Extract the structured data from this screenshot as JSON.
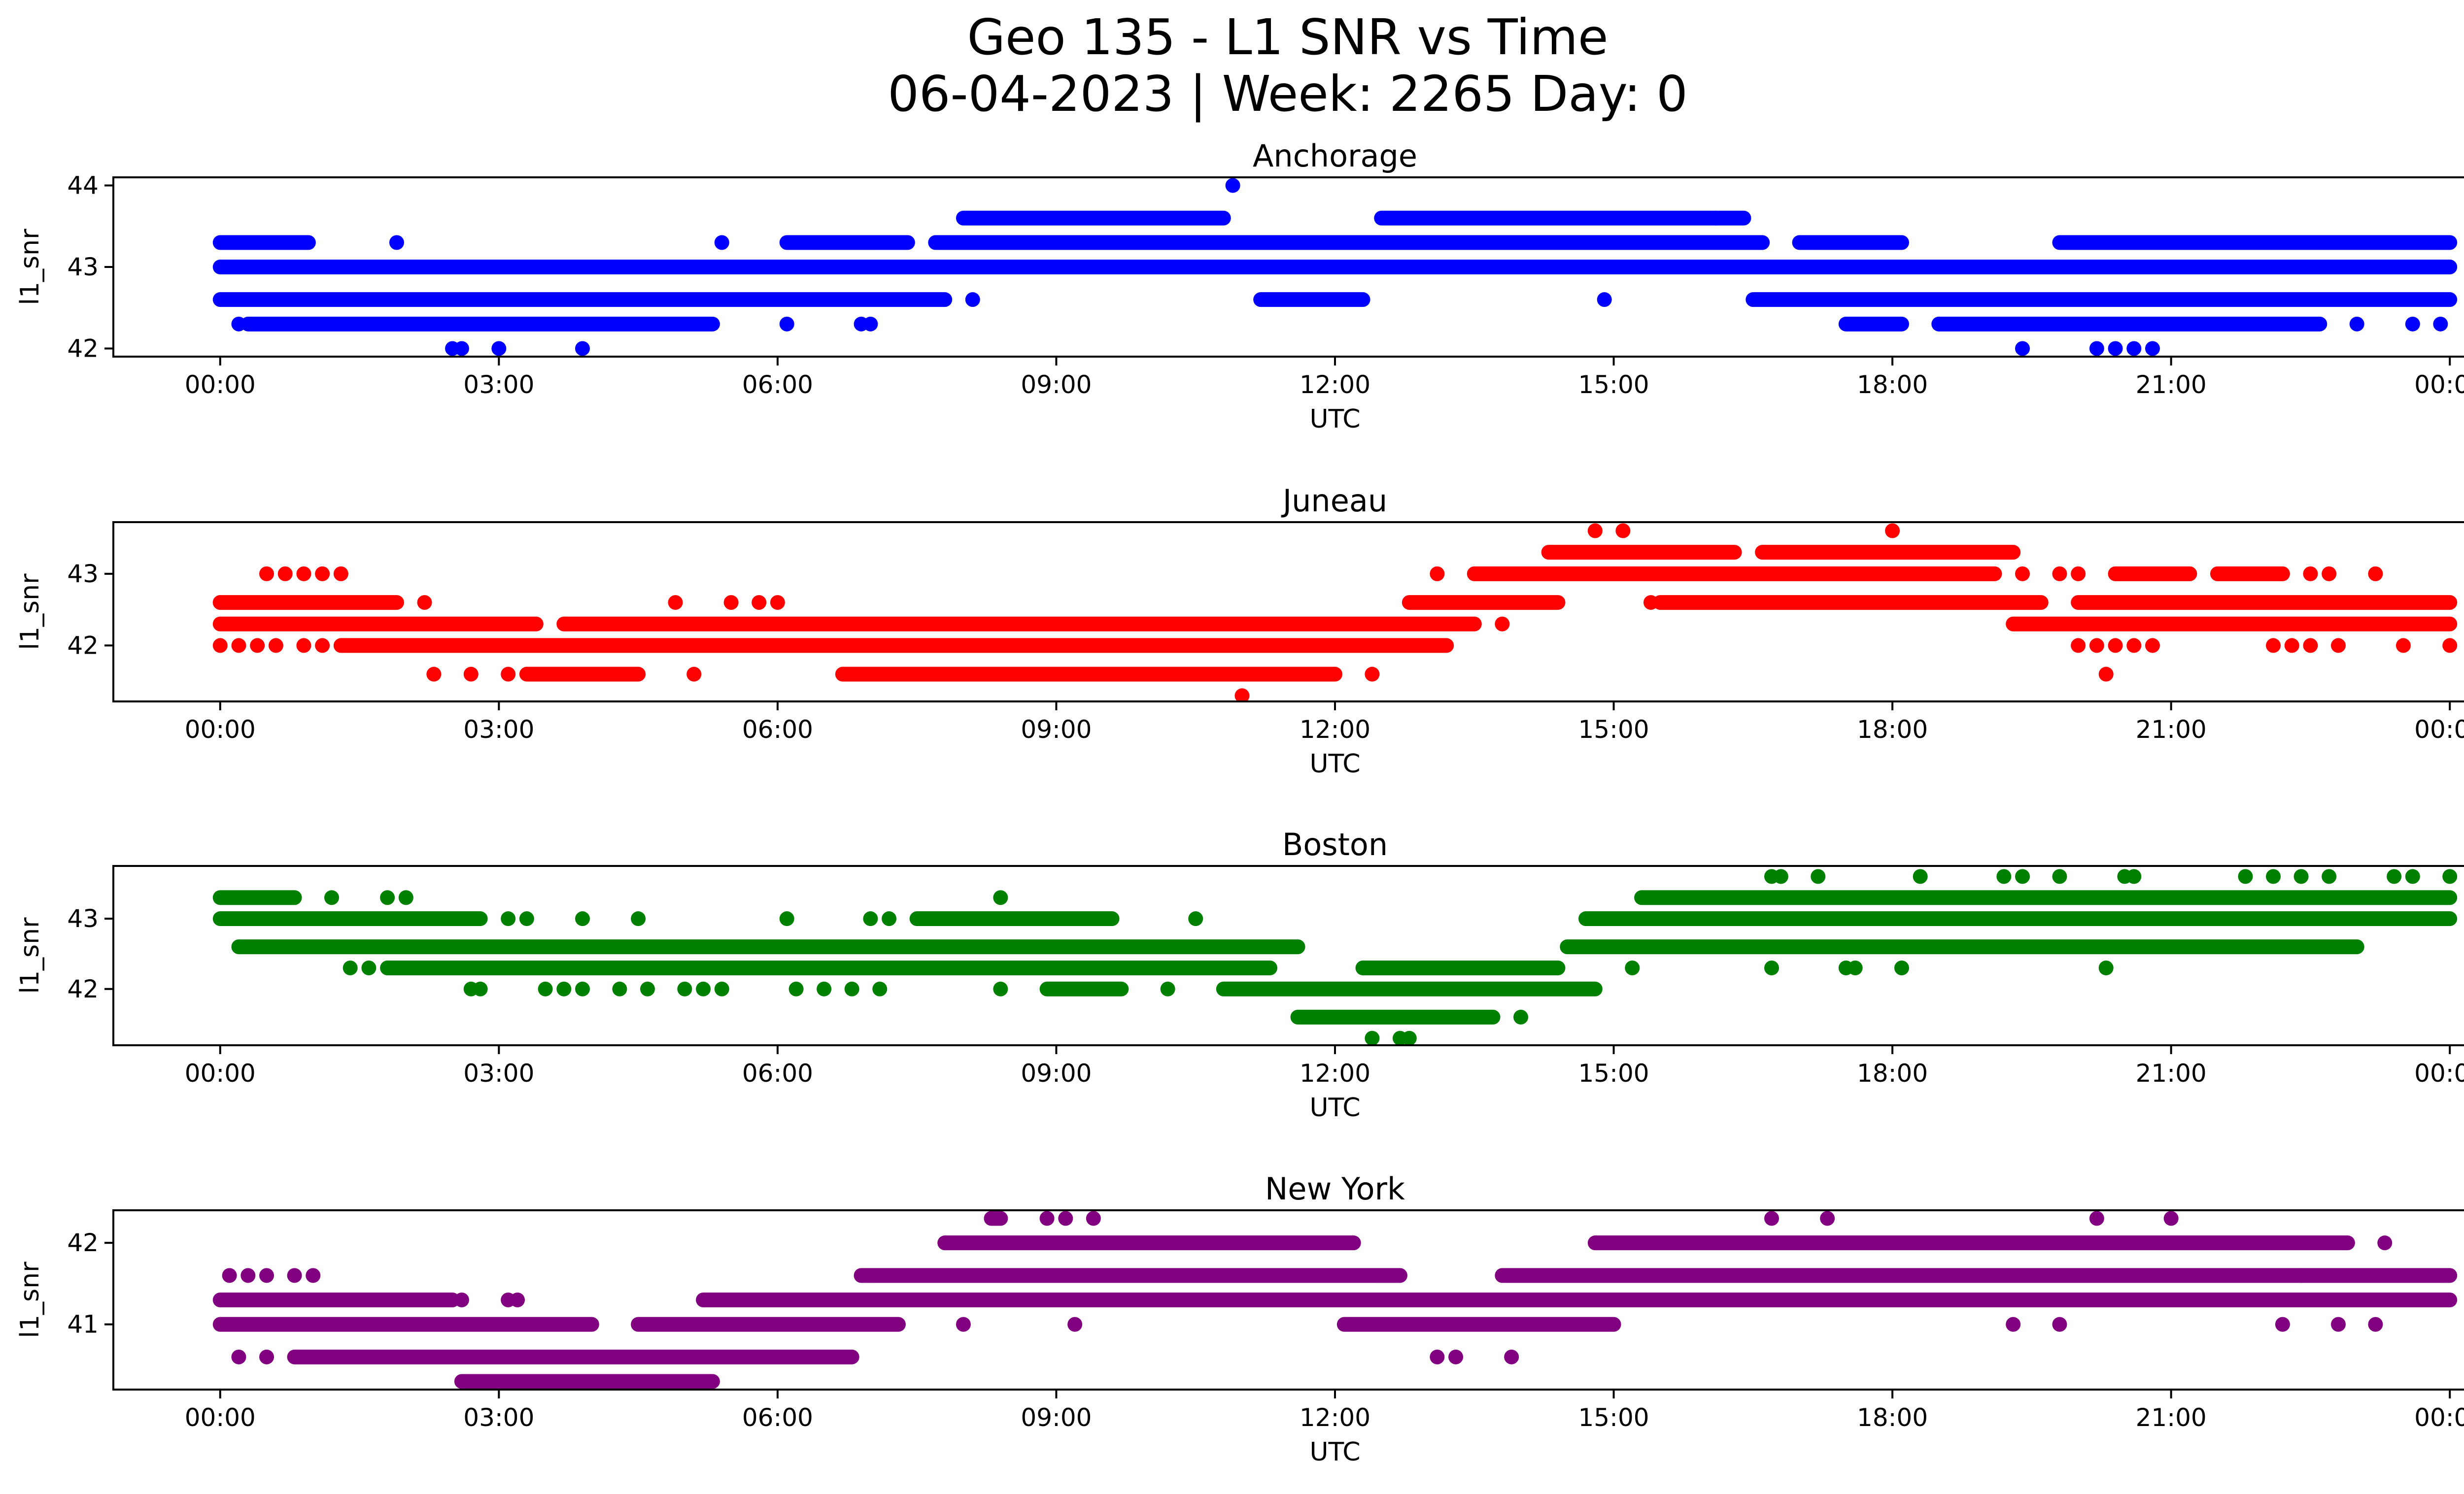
{
  "figure": {
    "title_line1": "Geo 135 - L1 SNR vs Time",
    "title_line2": "06-04-2023 | Week: 2265 Day: 0"
  },
  "chart_data": [
    {
      "type": "scatter",
      "title": "Anchorage",
      "xlabel": "UTC",
      "ylabel": "l1_snr",
      "color": "#0000ff",
      "x_unit": "hours UTC",
      "xlim": [
        -1.15,
        25.15
      ],
      "xticks": [
        0,
        3,
        6,
        9,
        12,
        15,
        18,
        21,
        24
      ],
      "xtick_labels": [
        "00:00",
        "03:00",
        "06:00",
        "09:00",
        "12:00",
        "15:00",
        "18:00",
        "21:00",
        "00:00"
      ],
      "ylim": [
        41.9,
        44.1
      ],
      "yticks": [
        42,
        43,
        44
      ],
      "ytick_labels": [
        "42",
        "43",
        "44"
      ],
      "bands": [
        {
          "y": 43.0,
          "x": [
            [
              0,
              24
            ]
          ]
        },
        {
          "y": 42.6,
          "x": [
            [
              0,
              7.8
            ],
            [
              11.2,
              12.3
            ],
            [
              16.5,
              24
            ]
          ]
        },
        {
          "y": 42.3,
          "x": [
            [
              0.3,
              5.3
            ],
            [
              17.5,
              18.1
            ],
            [
              18.5,
              22.6
            ]
          ]
        },
        {
          "y": 43.3,
          "x": [
            [
              0,
              0.95
            ],
            [
              6.1,
              7.4
            ],
            [
              7.7,
              16.6
            ],
            [
              17.0,
              18.1
            ],
            [
              19.8,
              24
            ]
          ]
        },
        {
          "y": 43.6,
          "x": [
            [
              8.0,
              10.8
            ],
            [
              12.5,
              16.4
            ]
          ]
        }
      ],
      "points": [
        {
          "x": 0.2,
          "y": 42.3
        },
        {
          "x": 1.9,
          "y": 43.3
        },
        {
          "x": 5.4,
          "y": 43.3
        },
        {
          "x": 6.1,
          "y": 42.3
        },
        {
          "x": 6.9,
          "y": 42.3
        },
        {
          "x": 7.0,
          "y": 42.3
        },
        {
          "x": 8.1,
          "y": 42.6
        },
        {
          "x": 2.5,
          "y": 42.0
        },
        {
          "x": 2.6,
          "y": 42.0
        },
        {
          "x": 3.0,
          "y": 42.0
        },
        {
          "x": 3.9,
          "y": 42.0
        },
        {
          "x": 10.9,
          "y": 44.0
        },
        {
          "x": 14.9,
          "y": 42.6
        },
        {
          "x": 18.5,
          "y": 42.3
        },
        {
          "x": 19.4,
          "y": 42.0
        },
        {
          "x": 20.2,
          "y": 42.0
        },
        {
          "x": 20.4,
          "y": 42.0
        },
        {
          "x": 20.6,
          "y": 42.0
        },
        {
          "x": 20.8,
          "y": 42.0
        },
        {
          "x": 23.0,
          "y": 42.3
        },
        {
          "x": 23.6,
          "y": 42.3
        },
        {
          "x": 23.9,
          "y": 42.3
        },
        {
          "x": 16.1,
          "y": 43.6
        }
      ]
    },
    {
      "type": "scatter",
      "title": "Juneau",
      "xlabel": "UTC",
      "ylabel": "l1_snr",
      "color": "#ff0000",
      "x_unit": "hours UTC",
      "xlim": [
        -1.15,
        25.15
      ],
      "xticks": [
        0,
        3,
        6,
        9,
        12,
        15,
        18,
        21,
        24
      ],
      "xtick_labels": [
        "00:00",
        "03:00",
        "06:00",
        "09:00",
        "12:00",
        "15:00",
        "18:00",
        "21:00",
        "00:00"
      ],
      "ylim": [
        41.22,
        43.72
      ],
      "yticks": [
        42,
        43
      ],
      "ytick_labels": [
        "42",
        "43"
      ],
      "bands": [
        {
          "y": 42.0,
          "x": [
            [
              1.3,
              13.2
            ]
          ]
        },
        {
          "y": 42.3,
          "x": [
            [
              0,
              3.4
            ],
            [
              3.7,
              13.5
            ],
            [
              19.3,
              24
            ]
          ]
        },
        {
          "y": 42.6,
          "x": [
            [
              0,
              1.9
            ],
            [
              12.8,
              14.4
            ],
            [
              15.5,
              19.6
            ],
            [
              20.0,
              24
            ]
          ]
        },
        {
          "y": 43.0,
          "x": [
            [
              13.5,
              19.1
            ],
            [
              20.4,
              21.2
            ],
            [
              21.5,
              22.2
            ]
          ]
        },
        {
          "y": 43.3,
          "x": [
            [
              14.3,
              16.3
            ],
            [
              16.6,
              19.3
            ]
          ]
        },
        {
          "y": 41.6,
          "x": [
            [
              3.3,
              4.5
            ],
            [
              6.7,
              12.0
            ]
          ]
        }
      ],
      "points": [
        {
          "x": 0.0,
          "y": 42.0
        },
        {
          "x": 0.2,
          "y": 42.0
        },
        {
          "x": 0.4,
          "y": 42.0
        },
        {
          "x": 0.6,
          "y": 42.0
        },
        {
          "x": 0.9,
          "y": 42.0
        },
        {
          "x": 1.1,
          "y": 42.0
        },
        {
          "x": 0.0,
          "y": 42.6
        },
        {
          "x": 0.5,
          "y": 43.0
        },
        {
          "x": 0.7,
          "y": 43.0
        },
        {
          "x": 0.9,
          "y": 43.0
        },
        {
          "x": 1.1,
          "y": 43.0
        },
        {
          "x": 1.3,
          "y": 43.0
        },
        {
          "x": 2.2,
          "y": 42.6
        },
        {
          "x": 2.3,
          "y": 41.6
        },
        {
          "x": 2.7,
          "y": 41.6
        },
        {
          "x": 3.1,
          "y": 41.6
        },
        {
          "x": 5.1,
          "y": 41.6
        },
        {
          "x": 4.9,
          "y": 42.6
        },
        {
          "x": 5.5,
          "y": 42.6
        },
        {
          "x": 5.8,
          "y": 42.6
        },
        {
          "x": 6.0,
          "y": 42.6
        },
        {
          "x": 11.0,
          "y": 41.3
        },
        {
          "x": 12.4,
          "y": 41.6
        },
        {
          "x": 13.1,
          "y": 43.0
        },
        {
          "x": 13.8,
          "y": 42.3
        },
        {
          "x": 14.8,
          "y": 43.6
        },
        {
          "x": 15.1,
          "y": 43.6
        },
        {
          "x": 15.4,
          "y": 42.6
        },
        {
          "x": 18.0,
          "y": 43.6
        },
        {
          "x": 19.4,
          "y": 43.0
        },
        {
          "x": 19.8,
          "y": 43.0
        },
        {
          "x": 20.0,
          "y": 43.0
        },
        {
          "x": 20.3,
          "y": 41.6
        },
        {
          "x": 20.0,
          "y": 42.0
        },
        {
          "x": 20.2,
          "y": 42.0
        },
        {
          "x": 20.4,
          "y": 42.0
        },
        {
          "x": 20.6,
          "y": 42.0
        },
        {
          "x": 20.8,
          "y": 42.0
        },
        {
          "x": 22.1,
          "y": 42.0
        },
        {
          "x": 22.3,
          "y": 42.0
        },
        {
          "x": 22.5,
          "y": 42.0
        },
        {
          "x": 22.8,
          "y": 42.0
        },
        {
          "x": 23.5,
          "y": 42.0
        },
        {
          "x": 24.0,
          "y": 42.0
        },
        {
          "x": 22.5,
          "y": 43.0
        },
        {
          "x": 22.7,
          "y": 43.0
        },
        {
          "x": 23.2,
          "y": 43.0
        }
      ]
    },
    {
      "type": "scatter",
      "title": "Boston",
      "xlabel": "UTC",
      "ylabel": "l1_snr",
      "color": "#008000",
      "x_unit": "hours UTC",
      "xlim": [
        -1.15,
        25.15
      ],
      "xticks": [
        0,
        3,
        6,
        9,
        12,
        15,
        18,
        21,
        24
      ],
      "xtick_labels": [
        "00:00",
        "03:00",
        "06:00",
        "09:00",
        "12:00",
        "15:00",
        "18:00",
        "21:00",
        "00:00"
      ],
      "ylim": [
        41.2,
        43.75
      ],
      "yticks": [
        42,
        43
      ],
      "ytick_labels": [
        "42",
        "43"
      ],
      "bands": [
        {
          "y": 43.3,
          "x": [
            [
              0,
              0.8
            ],
            [
              15.3,
              24
            ]
          ]
        },
        {
          "y": 43.0,
          "x": [
            [
              0,
              2.8
            ],
            [
              7.5,
              9.6
            ],
            [
              14.7,
              24
            ]
          ]
        },
        {
          "y": 42.6,
          "x": [
            [
              0.2,
              11.6
            ],
            [
              14.5,
              23.0
            ]
          ]
        },
        {
          "y": 42.3,
          "x": [
            [
              1.8,
              11.3
            ],
            [
              12.3,
              14.4
            ]
          ]
        },
        {
          "y": 42.0,
          "x": [
            [
              8.9,
              9.7
            ],
            [
              10.8,
              14.8
            ]
          ]
        },
        {
          "y": 41.6,
          "x": [
            [
              11.6,
              13.7
            ]
          ]
        }
      ],
      "points": [
        {
          "x": 1.2,
          "y": 43.3
        },
        {
          "x": 1.8,
          "y": 43.3
        },
        {
          "x": 2.0,
          "y": 43.3
        },
        {
          "x": 3.1,
          "y": 43.0
        },
        {
          "x": 3.3,
          "y": 43.0
        },
        {
          "x": 3.9,
          "y": 43.0
        },
        {
          "x": 4.5,
          "y": 43.0
        },
        {
          "x": 6.1,
          "y": 43.0
        },
        {
          "x": 7.0,
          "y": 43.0
        },
        {
          "x": 7.2,
          "y": 43.0
        },
        {
          "x": 10.5,
          "y": 43.0
        },
        {
          "x": 8.4,
          "y": 43.3
        },
        {
          "x": 1.4,
          "y": 42.3
        },
        {
          "x": 1.6,
          "y": 42.3
        },
        {
          "x": 2.7,
          "y": 42.0
        },
        {
          "x": 2.8,
          "y": 42.0
        },
        {
          "x": 3.5,
          "y": 42.0
        },
        {
          "x": 3.7,
          "y": 42.0
        },
        {
          "x": 3.9,
          "y": 42.0
        },
        {
          "x": 4.3,
          "y": 42.0
        },
        {
          "x": 4.6,
          "y": 42.0
        },
        {
          "x": 5.0,
          "y": 42.0
        },
        {
          "x": 5.2,
          "y": 42.0
        },
        {
          "x": 5.4,
          "y": 42.0
        },
        {
          "x": 6.2,
          "y": 42.0
        },
        {
          "x": 6.5,
          "y": 42.0
        },
        {
          "x": 6.8,
          "y": 42.0
        },
        {
          "x": 7.1,
          "y": 42.0
        },
        {
          "x": 8.4,
          "y": 42.0
        },
        {
          "x": 10.2,
          "y": 42.0
        },
        {
          "x": 12.4,
          "y": 41.3
        },
        {
          "x": 12.7,
          "y": 41.3
        },
        {
          "x": 12.8,
          "y": 41.3
        },
        {
          "x": 14.0,
          "y": 41.6
        },
        {
          "x": 15.2,
          "y": 42.3
        },
        {
          "x": 16.7,
          "y": 42.3
        },
        {
          "x": 17.5,
          "y": 42.3
        },
        {
          "x": 17.6,
          "y": 42.3
        },
        {
          "x": 18.1,
          "y": 42.3
        },
        {
          "x": 20.3,
          "y": 42.3
        },
        {
          "x": 16.7,
          "y": 43.6
        },
        {
          "x": 16.8,
          "y": 43.6
        },
        {
          "x": 17.2,
          "y": 43.6
        },
        {
          "x": 18.3,
          "y": 43.6
        },
        {
          "x": 19.2,
          "y": 43.6
        },
        {
          "x": 19.4,
          "y": 43.6
        },
        {
          "x": 19.8,
          "y": 43.6
        },
        {
          "x": 20.5,
          "y": 43.6
        },
        {
          "x": 20.6,
          "y": 43.6
        },
        {
          "x": 21.8,
          "y": 43.6
        },
        {
          "x": 22.1,
          "y": 43.6
        },
        {
          "x": 22.4,
          "y": 43.6
        },
        {
          "x": 22.7,
          "y": 43.6
        },
        {
          "x": 23.4,
          "y": 43.6
        },
        {
          "x": 23.6,
          "y": 43.6
        },
        {
          "x": 24.0,
          "y": 43.6
        }
      ]
    },
    {
      "type": "scatter",
      "title": "New York",
      "xlabel": "UTC",
      "ylabel": "l1_snr",
      "color": "#800080",
      "x_unit": "hours UTC",
      "xlim": [
        -1.15,
        25.15
      ],
      "xticks": [
        0,
        3,
        6,
        9,
        12,
        15,
        18,
        21,
        24
      ],
      "xtick_labels": [
        "00:00",
        "03:00",
        "06:00",
        "09:00",
        "12:00",
        "15:00",
        "18:00",
        "21:00",
        "00:00"
      ],
      "ylim": [
        40.2,
        42.4
      ],
      "yticks": [
        41,
        42
      ],
      "ytick_labels": [
        "41",
        "42"
      ],
      "bands": [
        {
          "y": 41.0,
          "x": [
            [
              0,
              4.0
            ],
            [
              4.5,
              7.3
            ],
            [
              12.1,
              15.0
            ]
          ]
        },
        {
          "y": 41.3,
          "x": [
            [
              0,
              2.5
            ],
            [
              5.2,
              24
            ]
          ]
        },
        {
          "y": 40.6,
          "x": [
            [
              0.8,
              6.8
            ]
          ]
        },
        {
          "y": 40.3,
          "x": [
            [
              2.6,
              5.3
            ]
          ]
        },
        {
          "y": 41.6,
          "x": [
            [
              6.9,
              12.7
            ],
            [
              13.8,
              24
            ]
          ]
        },
        {
          "y": 42.0,
          "x": [
            [
              7.8,
              12.2
            ],
            [
              14.8,
              22.9
            ]
          ]
        },
        {
          "y": 42.3,
          "x": [
            [
              8.3,
              8.4
            ]
          ]
        }
      ],
      "points": [
        {
          "x": 0.1,
          "y": 41.6
        },
        {
          "x": 0.3,
          "y": 41.6
        },
        {
          "x": 0.5,
          "y": 41.6
        },
        {
          "x": 0.8,
          "y": 41.6
        },
        {
          "x": 1.0,
          "y": 41.6
        },
        {
          "x": 0.2,
          "y": 40.6
        },
        {
          "x": 0.5,
          "y": 40.6
        },
        {
          "x": 2.6,
          "y": 41.3
        },
        {
          "x": 3.1,
          "y": 41.3
        },
        {
          "x": 3.2,
          "y": 41.3
        },
        {
          "x": 8.0,
          "y": 41.0
        },
        {
          "x": 9.2,
          "y": 41.0
        },
        {
          "x": 8.9,
          "y": 42.3
        },
        {
          "x": 9.1,
          "y": 42.3
        },
        {
          "x": 9.4,
          "y": 42.3
        },
        {
          "x": 13.1,
          "y": 40.6
        },
        {
          "x": 13.3,
          "y": 40.6
        },
        {
          "x": 13.9,
          "y": 40.6
        },
        {
          "x": 16.7,
          "y": 42.3
        },
        {
          "x": 17.3,
          "y": 42.3
        },
        {
          "x": 20.2,
          "y": 42.3
        },
        {
          "x": 21.0,
          "y": 42.3
        },
        {
          "x": 19.3,
          "y": 41.0
        },
        {
          "x": 19.8,
          "y": 41.0
        },
        {
          "x": 22.2,
          "y": 41.0
        },
        {
          "x": 22.8,
          "y": 41.0
        },
        {
          "x": 23.2,
          "y": 41.0
        },
        {
          "x": 23.3,
          "y": 42.0
        },
        {
          "x": 22.4,
          "y": 41.6
        }
      ]
    }
  ]
}
